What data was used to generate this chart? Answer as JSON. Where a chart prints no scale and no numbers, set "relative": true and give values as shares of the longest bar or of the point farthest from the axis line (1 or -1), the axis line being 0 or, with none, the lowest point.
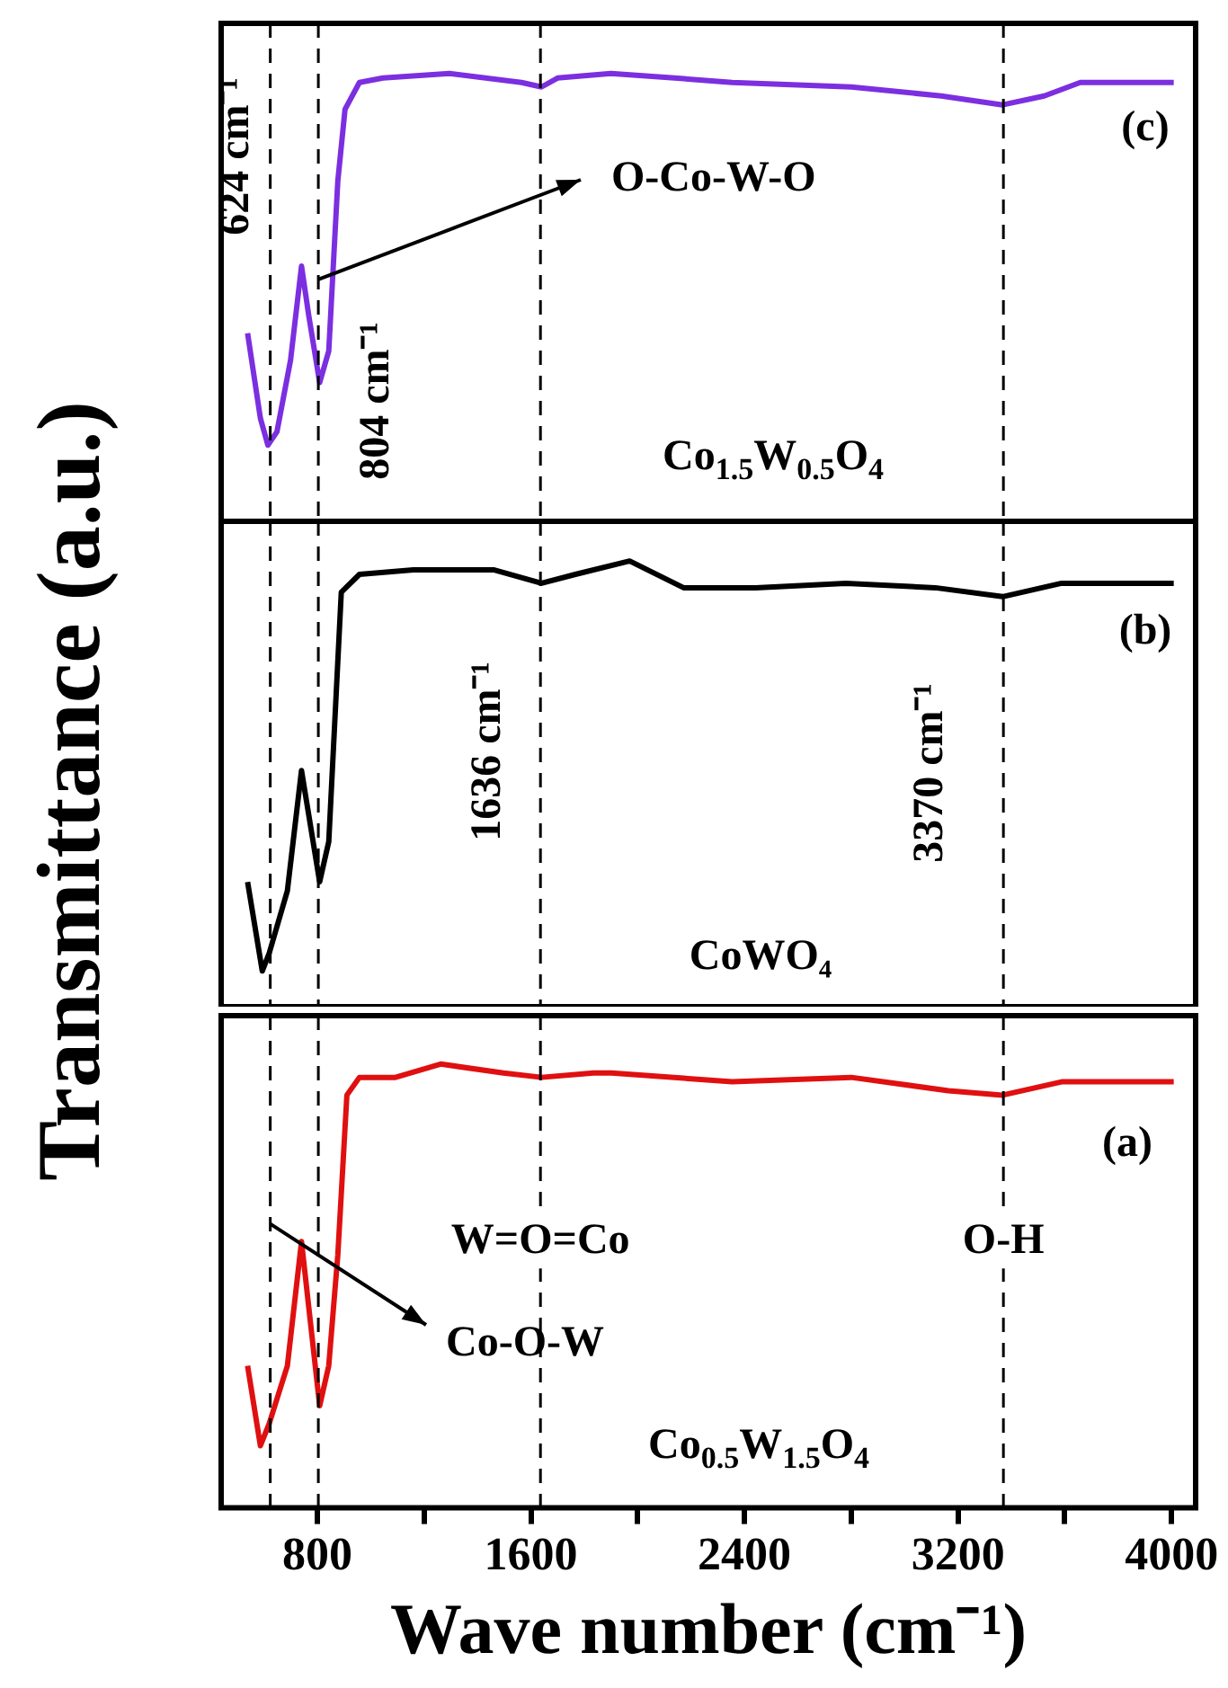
{
  "chart_data": [
    {
      "type": "line",
      "relative": true,
      "tick_labels": false,
      "xlim": [
        440,
        4090
      ],
      "x": [
        539,
        587,
        615,
        649,
        700,
        741,
        768,
        809,
        843,
        877,
        904,
        958,
        1046,
        1295,
        1565,
        1640,
        1700,
        1900,
        2138,
        2354,
        2800,
        3137,
        3367,
        3523,
        3658,
        4008
      ],
      "series": [
        {
          "color": "#7b2fe0",
          "values": [
            0.42,
            0.23,
            0.17,
            0.2,
            0.36,
            0.57,
            0.46,
            0.31,
            0.38,
            0.76,
            0.92,
            0.98,
            0.99,
            1,
            0.98,
            0.97,
            0.99,
            1,
            0.99,
            0.98,
            0.97,
            0.95,
            0.93,
            0.95,
            0.98,
            0.98
          ]
        }
      ],
      "ref_lines": [
        {
          "axis": "x",
          "value": 624,
          "label": "624 cm⁻¹",
          "line_style": "dashed"
        },
        {
          "axis": "x",
          "value": 804,
          "label": "804 cm⁻¹",
          "line_style": "dashed"
        },
        {
          "axis": "x",
          "value": 1636,
          "line_style": "dashed"
        },
        {
          "axis": "x",
          "value": 3370,
          "line_style": "dashed"
        }
      ],
      "annotations": [
        "(c)",
        "Co$_{1.5}$W$_{0.5}$O$_{4}$",
        {
          "text": "O-Co-W-O",
          "x": 804,
          "y": 0.54
        }
      ]
    },
    {
      "type": "line",
      "relative": true,
      "tick_labels": false,
      "xlim": [
        440,
        4090
      ],
      "ylabel": "Transmittance (a.u.)",
      "x": [
        539,
        594,
        620,
        688,
        741,
        809,
        843,
        890,
        958,
        1160,
        1463,
        1640,
        1767,
        1970,
        2172,
        2442,
        2780,
        3115,
        3367,
        3588,
        4008
      ],
      "series": [
        {
          "color": "#000000",
          "values": [
            0.28,
            0.08,
            0.12,
            0.26,
            0.53,
            0.28,
            0.37,
            0.93,
            0.97,
            0.98,
            0.98,
            0.95,
            0.97,
            1,
            0.94,
            0.94,
            0.95,
            0.94,
            0.92,
            0.95,
            0.95
          ]
        }
      ],
      "ref_lines": [
        {
          "axis": "x",
          "value": 624,
          "line_style": "dashed"
        },
        {
          "axis": "x",
          "value": 804,
          "line_style": "dashed"
        },
        {
          "axis": "x",
          "value": 1636,
          "label": "1636 cm⁻¹",
          "line_style": "dashed"
        },
        {
          "axis": "x",
          "value": 3370,
          "label": "3370 cm⁻¹",
          "line_style": "dashed"
        }
      ],
      "annotations": [
        "(b)",
        "CoWO₄"
      ]
    },
    {
      "type": "line",
      "relative": true,
      "tick_labels": "x",
      "xlim": [
        440,
        4090
      ],
      "xlabel": "Wave number (cm⁻¹)",
      "xticks": [
        800,
        {
          "value": 1200,
          "label": null
        },
        1600,
        {
          "value": 2000,
          "label": null
        },
        2400,
        {
          "value": 2800,
          "label": null
        },
        3200,
        {
          "value": 3600,
          "label": null
        },
        4000
      ],
      "x": [
        539,
        587,
        620,
        688,
        741,
        809,
        843,
        877,
        911,
        958,
        1093,
        1262,
        1497,
        1640,
        1835,
        1902,
        2354,
        2800,
        3164,
        3367,
        3588,
        4008
      ],
      "series": [
        {
          "color": "#e01010",
          "values": [
            0.32,
            0.14,
            0.19,
            0.32,
            0.6,
            0.23,
            0.32,
            0.57,
            0.93,
            0.97,
            0.97,
            1,
            0.98,
            0.97,
            0.98,
            0.98,
            0.96,
            0.97,
            0.94,
            0.93,
            0.96,
            0.96
          ]
        }
      ],
      "ref_lines": [
        {
          "axis": "x",
          "value": 624,
          "line_style": "dashed"
        },
        {
          "axis": "x",
          "value": 804,
          "line_style": "dashed"
        },
        {
          "axis": "x",
          "value": 1636,
          "line_style": "dashed"
        },
        {
          "axis": "x",
          "value": 3370,
          "line_style": "dashed"
        }
      ],
      "annotations": [
        "(a)",
        "Co$_{0.5}$W$_{1.5}$O$_{4}$",
        {
          "text": "W=O=Co",
          "x": 1636,
          "y": 0.6
        },
        {
          "text": "O-H",
          "x": 3370,
          "y": 0.6
        },
        {
          "text": "Co-O-W",
          "x": 624,
          "y": 0.64
        }
      ]
    }
  ]
}
